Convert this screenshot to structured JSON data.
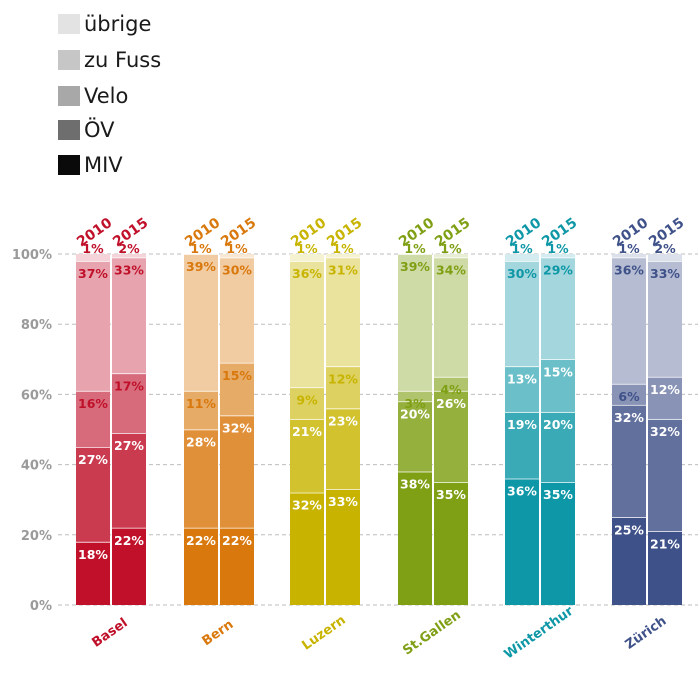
{
  "legend": [
    {
      "label": "übrige",
      "color": "#e3e3e3"
    },
    {
      "label": "zu Fuss",
      "color": "#c6c6c6"
    },
    {
      "label": "Velo",
      "color": "#a8a8a8"
    },
    {
      "label": "ÖV",
      "color": "#6e6e6e"
    },
    {
      "label": "MIV",
      "color": "#0a0a0a"
    }
  ],
  "chart_data": {
    "type": "bar",
    "stacked": true,
    "title": "",
    "ylabel": "",
    "ylim": [
      0,
      100
    ],
    "yticks": [
      "0%",
      "20%",
      "40%",
      "60%",
      "80%",
      "100%"
    ],
    "grid": true,
    "legend_position": "top-left",
    "years": [
      "2010",
      "2015"
    ],
    "stack_order": [
      "MIV",
      "ÖV",
      "Velo",
      "zu Fuss",
      "übrige"
    ],
    "cities": [
      {
        "name": "Basel",
        "color": "#c0102a",
        "bars": [
          {
            "year": "2010",
            "values": [
              18,
              27,
              16,
              37,
              1
            ],
            "labels": [
              "18%",
              "27%",
              "16%",
              "37%",
              "1%"
            ]
          },
          {
            "year": "2015",
            "values": [
              22,
              27,
              17,
              33,
              2
            ],
            "labels": [
              "22%",
              "27%",
              "17%",
              "33%",
              "2%"
            ]
          }
        ]
      },
      {
        "name": "Bern",
        "color": "#d9780c",
        "bars": [
          {
            "year": "2010",
            "values": [
              22,
              28,
              11,
              39,
              1
            ],
            "labels": [
              "22%",
              "28%",
              "11%",
              "39%",
              "1%"
            ]
          },
          {
            "year": "2015",
            "values": [
              22,
              32,
              15,
              30,
              1
            ],
            "labels": [
              "22%",
              "32%",
              "15%",
              "30%",
              "1%"
            ]
          }
        ]
      },
      {
        "name": "Luzern",
        "color": "#c8b400",
        "bars": [
          {
            "year": "2010",
            "values": [
              32,
              21,
              9,
              36,
              1
            ],
            "labels": [
              "32%",
              "21%",
              "9%",
              "36%",
              "1%"
            ]
          },
          {
            "year": "2015",
            "values": [
              33,
              23,
              12,
              31,
              1
            ],
            "labels": [
              "33%",
              "23%",
              "12%",
              "31%",
              "1%"
            ]
          }
        ]
      },
      {
        "name": "St.Gallen",
        "color": "#7f9f14",
        "bars": [
          {
            "year": "2010",
            "values": [
              38,
              20,
              3,
              39,
              1
            ],
            "labels": [
              "38%",
              "20%",
              "3%",
              "39%",
              "1%"
            ]
          },
          {
            "year": "2015",
            "values": [
              35,
              26,
              4,
              34,
              1
            ],
            "labels": [
              "35%",
              "26%",
              "4%",
              "34%",
              "1%"
            ]
          }
        ]
      },
      {
        "name": "Winterthur",
        "color": "#0e97a6",
        "bars": [
          {
            "year": "2010",
            "values": [
              36,
              19,
              13,
              30,
              1
            ],
            "labels": [
              "36%",
              "19%",
              "13%",
              "30%",
              "1%"
            ]
          },
          {
            "year": "2015",
            "values": [
              35,
              20,
              15,
              29,
              1
            ],
            "labels": [
              "35%",
              "20%",
              "15%",
              "29%",
              "1%"
            ]
          }
        ]
      },
      {
        "name": "Zürich",
        "color": "#3f5189",
        "bars": [
          {
            "year": "2010",
            "values": [
              25,
              32,
              6,
              36,
              1
            ],
            "labels": [
              "25%",
              "32%",
              "6%",
              "36%",
              "1%"
            ]
          },
          {
            "year": "2015",
            "values": [
              21,
              32,
              12,
              33,
              2
            ],
            "labels": [
              "21%",
              "32%",
              "12%",
              "33%",
              "2%"
            ]
          }
        ]
      }
    ]
  }
}
